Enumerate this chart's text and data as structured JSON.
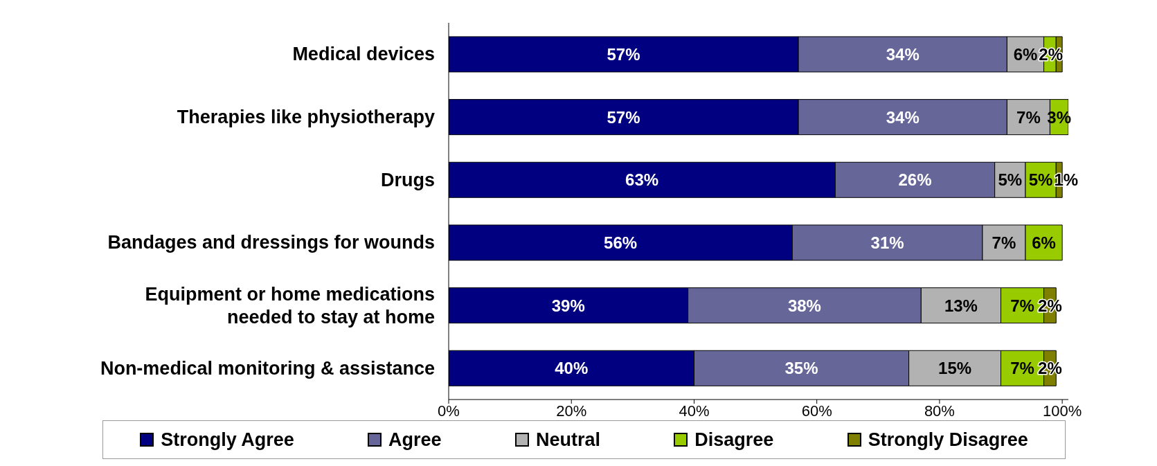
{
  "chart_data": {
    "type": "bar",
    "orientation": "horizontal",
    "stacked": true,
    "categories": [
      "Medical devices",
      "Therapies like physiotherapy",
      "Drugs",
      "Bandages and dressings for wounds",
      "Equipment or home medications\nneeded to stay at home",
      "Non-medical monitoring & assistance"
    ],
    "series": [
      {
        "name": "Strongly Agree",
        "color": "#000080",
        "values": [
          57,
          57,
          63,
          56,
          39,
          40
        ],
        "value_labels": [
          "57%",
          "57%",
          "63%",
          "56%",
          "39%",
          "40%"
        ]
      },
      {
        "name": "Agree",
        "color": "#666699",
        "values": [
          34,
          34,
          26,
          31,
          38,
          35
        ],
        "value_labels": [
          "34%",
          "34%",
          "26%",
          "31%",
          "38%",
          "35%"
        ]
      },
      {
        "name": "Neutral",
        "color": "#b2b2b2",
        "values": [
          6,
          7,
          5,
          7,
          13,
          15
        ],
        "value_labels": [
          "6%",
          "7%",
          "5%",
          "7%",
          "13%",
          "15%"
        ]
      },
      {
        "name": "Disagree",
        "color": "#99cc00",
        "values": [
          2,
          3,
          5,
          6,
          7,
          7
        ],
        "value_labels": [
          "2%",
          "3%",
          "5%",
          "6%",
          "7%",
          "7%"
        ]
      },
      {
        "name": "Strongly Disagree",
        "color": "#808000",
        "values": [
          1,
          null,
          1,
          null,
          2,
          2
        ],
        "value_labels": [
          null,
          null,
          "1%",
          null,
          "2%",
          "2%"
        ]
      }
    ],
    "xlim": [
      0,
      101
    ],
    "xticks": [
      {
        "value": 0,
        "label": "0%"
      },
      {
        "value": 20,
        "label": "20%"
      },
      {
        "value": 40,
        "label": "40%"
      },
      {
        "value": 60,
        "label": "60%"
      },
      {
        "value": 80,
        "label": "80%"
      },
      {
        "value": 100,
        "label": "100%"
      }
    ],
    "grid": false,
    "legend": "bottom"
  }
}
